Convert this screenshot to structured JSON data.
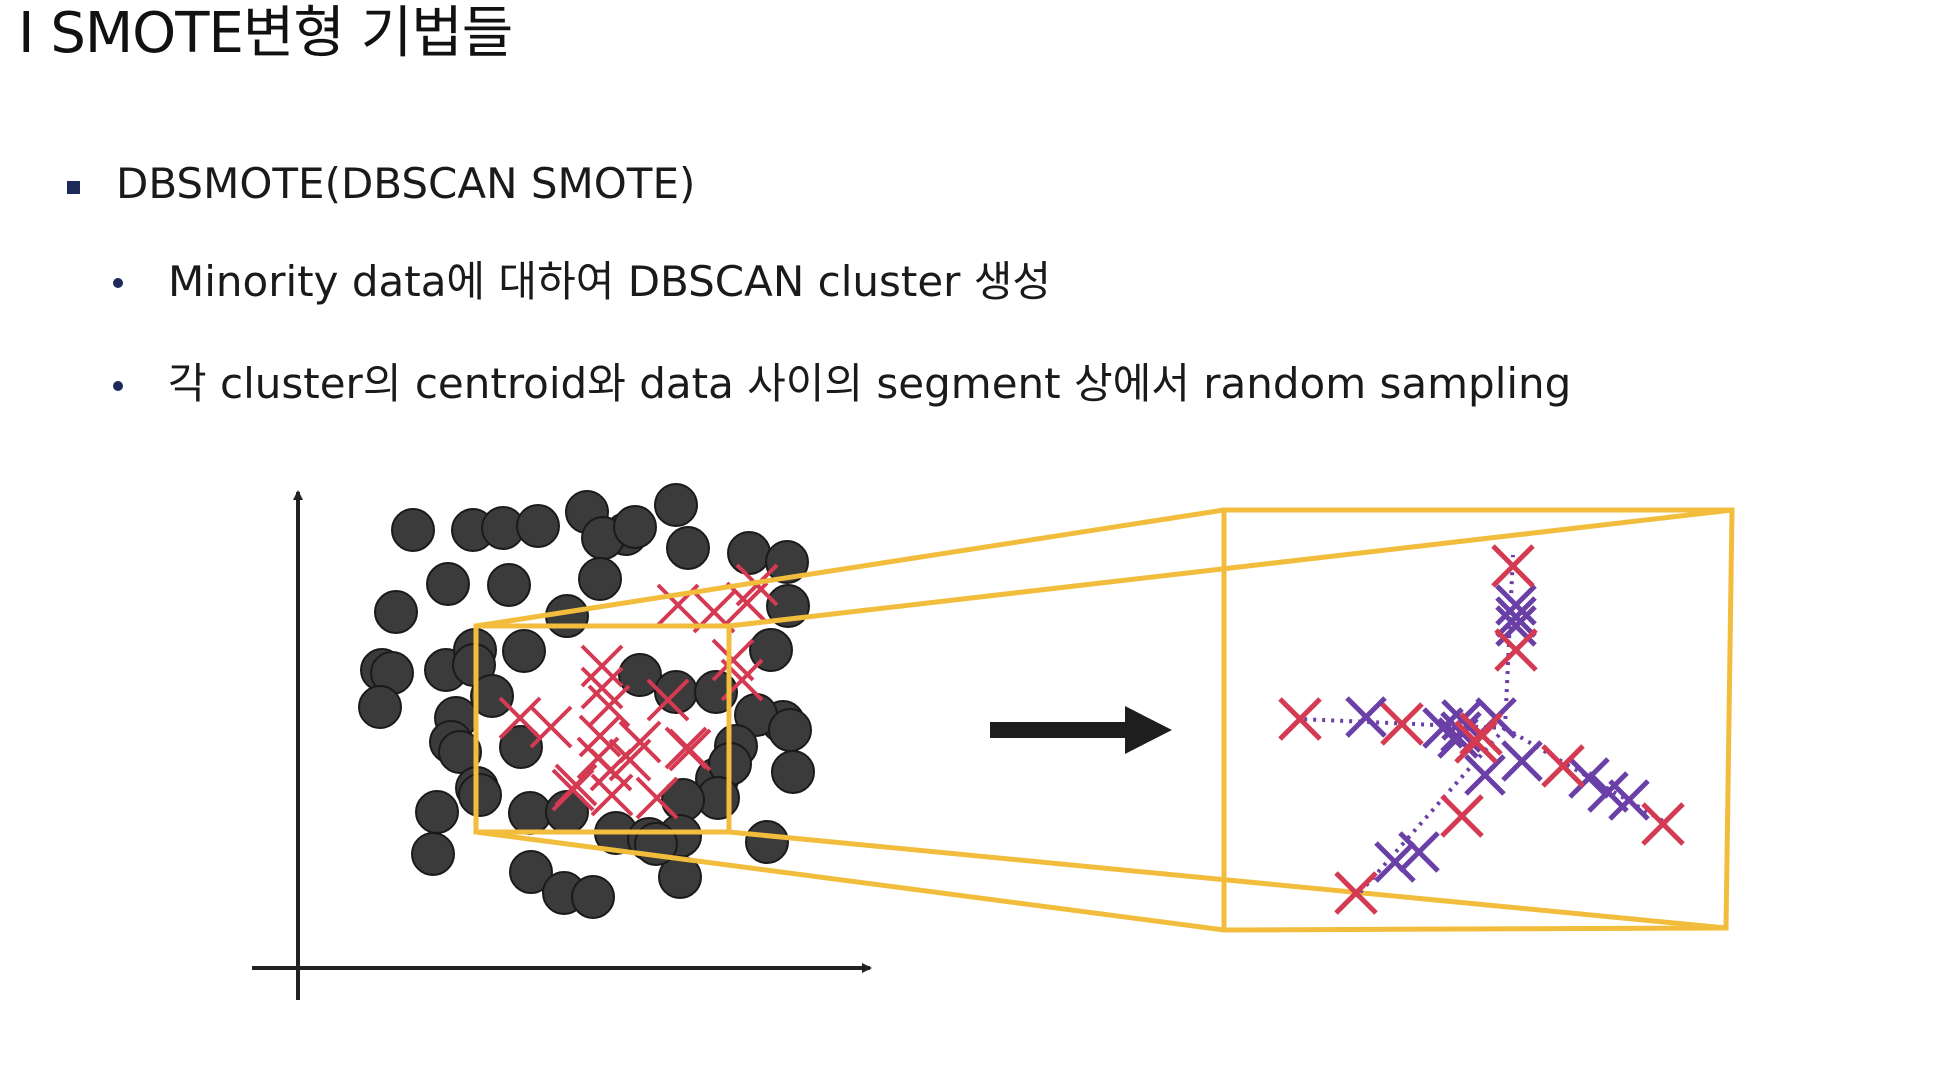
{
  "title": "I SMOTE변형 기법들",
  "bullets": {
    "level1": {
      "text": "DBSMOTE(DBSCAN SMOTE)"
    },
    "level2": [
      {
        "text": "Minority data에 대하여 DBSCAN cluster 생성"
      },
      {
        "text": "각 cluster의 centroid와 data 사이의 segment 상에서 random sampling"
      }
    ]
  },
  "colors": {
    "majority_point": "#3b3b3b",
    "minority_marker": "#d43a52",
    "synthetic_marker": "#6a3fa6",
    "zoom_frame": "#f2bd3c",
    "axis": "#222222",
    "arrow": "#1e1e1e",
    "bullet": "#1c2a5a"
  },
  "icons": {
    "level1_bullet": "square-bullet",
    "level2_bullet": "dot-bullet",
    "process_arrow": "right-arrow"
  }
}
